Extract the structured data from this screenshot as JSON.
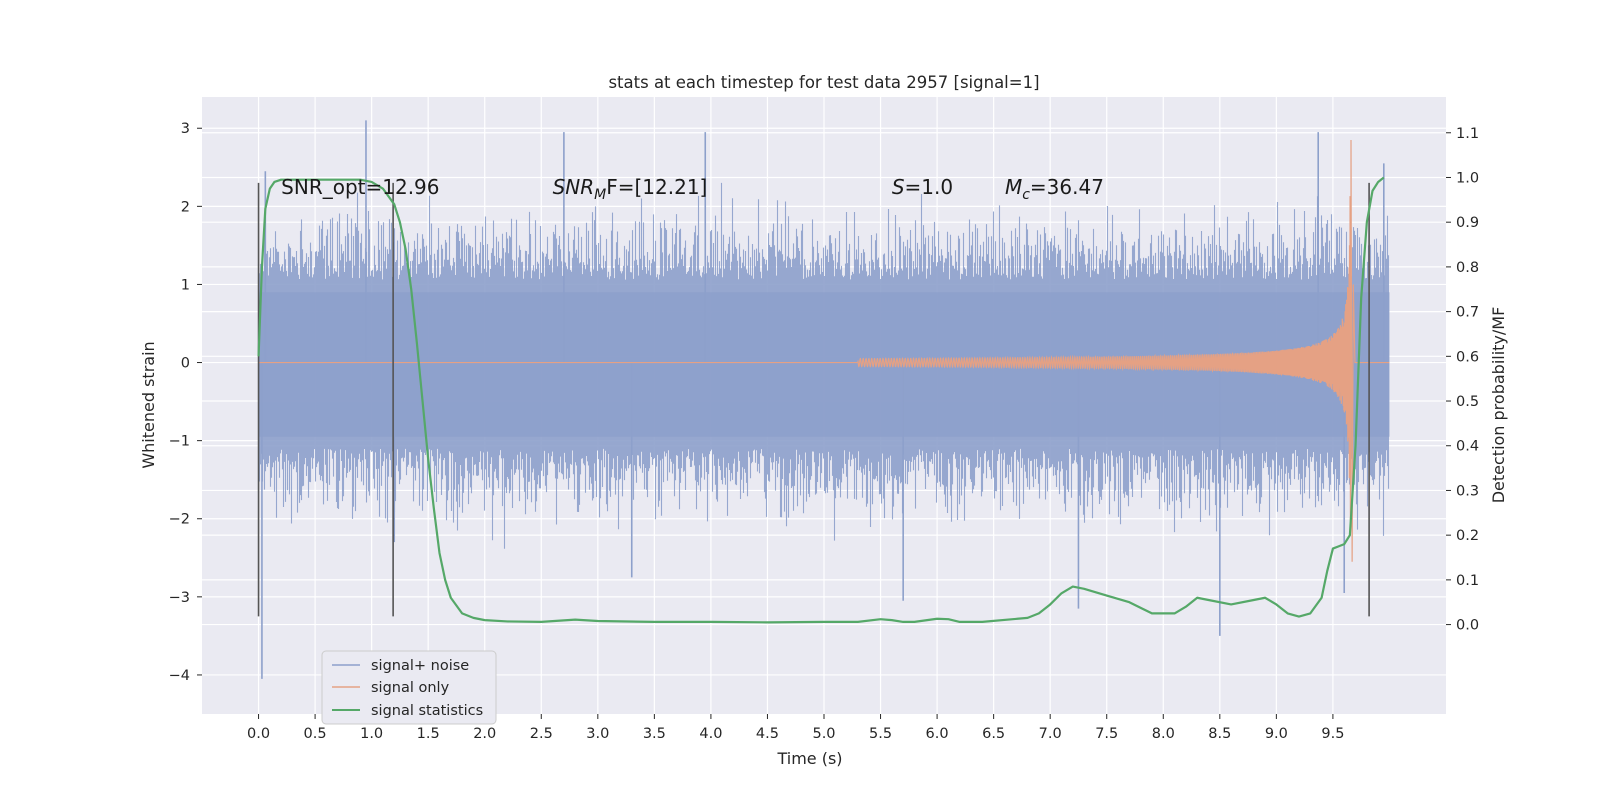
{
  "chart_data": {
    "type": "line",
    "title": "stats at each timestep for test data 2957 [signal=1]",
    "xlabel": "Time (s)",
    "ylabel": "Whitened strain",
    "ylabel_right": "Detection probability/MF",
    "xlim": [
      -0.5,
      10.5
    ],
    "ylim": [
      -4.5,
      3.4
    ],
    "ylim_right": [
      -0.2,
      1.18
    ],
    "x_ticks": [
      0.0,
      0.5,
      1.0,
      1.5,
      2.0,
      2.5,
      3.0,
      3.5,
      4.0,
      4.5,
      5.0,
      5.5,
      6.0,
      6.5,
      7.0,
      7.5,
      8.0,
      8.5,
      9.0,
      9.5
    ],
    "x_tick_labels": [
      "0.0",
      "0.5",
      "1.0",
      "1.5",
      "2.0",
      "2.5",
      "3.0",
      "3.5",
      "4.0",
      "4.5",
      "5.0",
      "5.5",
      "6.0",
      "6.5",
      "7.0",
      "7.5",
      "8.0",
      "8.5",
      "9.0",
      "9.5"
    ],
    "y_ticks": [
      3,
      2,
      1,
      0,
      -1,
      -2,
      -3,
      -4
    ],
    "y_tick_labels": [
      "3",
      "2",
      "1",
      "0",
      "−1",
      "−2",
      "−3",
      "−4"
    ],
    "y_right_ticks": [
      1.1,
      1.0,
      0.9,
      0.8,
      0.7,
      0.6,
      0.5,
      0.4,
      0.3,
      0.2,
      0.1,
      0.0
    ],
    "y_right_tick_labels": [
      "1.1",
      "1.0",
      "0.9",
      "0.8",
      "0.7",
      "0.6",
      "0.5",
      "0.4",
      "0.3",
      "0.2",
      "0.1",
      "0.0"
    ],
    "grid": true,
    "legend_position": "lower-left",
    "colors": {
      "background": "#eaeaf2",
      "grid": "#ffffff",
      "noise": "#8da0cb",
      "signal": "#e5a184",
      "stats": "#55a868",
      "vline": "#555555"
    },
    "annotations": [
      {
        "prefix": "SNR_opt",
        "sub": "",
        "suffix": "=12.96",
        "italic": false,
        "x": 0.2
      },
      {
        "prefix": "SNR",
        "sub": "M",
        "suffix": "F=[12.21]",
        "italic": true,
        "x": 2.6
      },
      {
        "prefix": "S",
        "sub": "",
        "suffix": "=1.0",
        "italic": true,
        "x": 5.6
      },
      {
        "prefix": "M",
        "sub": "c",
        "suffix": "=36.47",
        "italic": true,
        "x": 6.6
      }
    ],
    "annotation_y": 2.25,
    "vlines": [
      {
        "x": 0.0,
        "y0": -3.25,
        "y1": 2.3
      },
      {
        "x": 1.19,
        "y0": -3.25,
        "y1": 2.3
      },
      {
        "x": 9.82,
        "y0": -3.25,
        "y1": 2.3
      }
    ],
    "series": [
      {
        "name": "signal+ noise",
        "kind": "noise",
        "x_range": [
          0.0,
          10.0
        ],
        "typical_envelope": [
          -1.3,
          1.25
        ],
        "spikes": [
          [
            0.03,
            -4.05
          ],
          [
            0.06,
            2.45
          ],
          [
            0.95,
            3.1
          ],
          [
            1.2,
            -2.3
          ],
          [
            2.7,
            2.95
          ],
          [
            3.3,
            -2.75
          ],
          [
            3.95,
            2.95
          ],
          [
            5.7,
            -3.05
          ],
          [
            7.25,
            -3.15
          ],
          [
            8.5,
            -3.5
          ],
          [
            9.37,
            2.95
          ],
          [
            9.6,
            -2.95
          ],
          [
            9.95,
            2.55
          ]
        ]
      },
      {
        "name": "signal only",
        "kind": "chirp",
        "x_range": [
          5.3,
          9.7
        ],
        "peak": 2.85,
        "trough": -2.55,
        "merger_x": 9.66
      },
      {
        "name": "signal statistics",
        "kind": "stat",
        "axis": "right",
        "x": [
          0.0,
          0.03,
          0.06,
          0.1,
          0.14,
          0.2,
          0.3,
          0.5,
          0.7,
          0.9,
          1.0,
          1.1,
          1.2,
          1.25,
          1.3,
          1.35,
          1.4,
          1.45,
          1.5,
          1.55,
          1.6,
          1.65,
          1.7,
          1.8,
          1.9,
          2.0,
          2.2,
          2.5,
          2.8,
          3.0,
          3.5,
          4.0,
          4.5,
          5.0,
          5.3,
          5.5,
          5.6,
          5.7,
          5.8,
          6.0,
          6.1,
          6.2,
          6.4,
          6.8,
          6.9,
          7.0,
          7.1,
          7.2,
          7.3,
          7.5,
          7.7,
          7.9,
          8.1,
          8.2,
          8.3,
          8.4,
          8.6,
          8.8,
          8.9,
          9.0,
          9.1,
          9.2,
          9.3,
          9.4,
          9.45,
          9.5,
          9.55,
          9.6,
          9.65,
          9.7,
          9.75,
          9.8,
          9.85,
          9.9,
          9.95
        ],
        "values": [
          0.6,
          0.8,
          0.93,
          0.975,
          0.99,
          0.995,
          0.995,
          0.995,
          0.995,
          0.995,
          0.99,
          0.975,
          0.94,
          0.9,
          0.84,
          0.75,
          0.63,
          0.5,
          0.37,
          0.26,
          0.16,
          0.1,
          0.06,
          0.025,
          0.015,
          0.01,
          0.007,
          0.006,
          0.011,
          0.008,
          0.006,
          0.006,
          0.005,
          0.006,
          0.006,
          0.012,
          0.01,
          0.006,
          0.006,
          0.013,
          0.012,
          0.006,
          0.006,
          0.015,
          0.025,
          0.045,
          0.07,
          0.085,
          0.08,
          0.065,
          0.05,
          0.025,
          0.025,
          0.04,
          0.06,
          0.055,
          0.045,
          0.055,
          0.06,
          0.045,
          0.025,
          0.018,
          0.025,
          0.06,
          0.12,
          0.17,
          0.175,
          0.18,
          0.2,
          0.4,
          0.73,
          0.9,
          0.97,
          0.99,
          1.0
        ]
      }
    ]
  }
}
